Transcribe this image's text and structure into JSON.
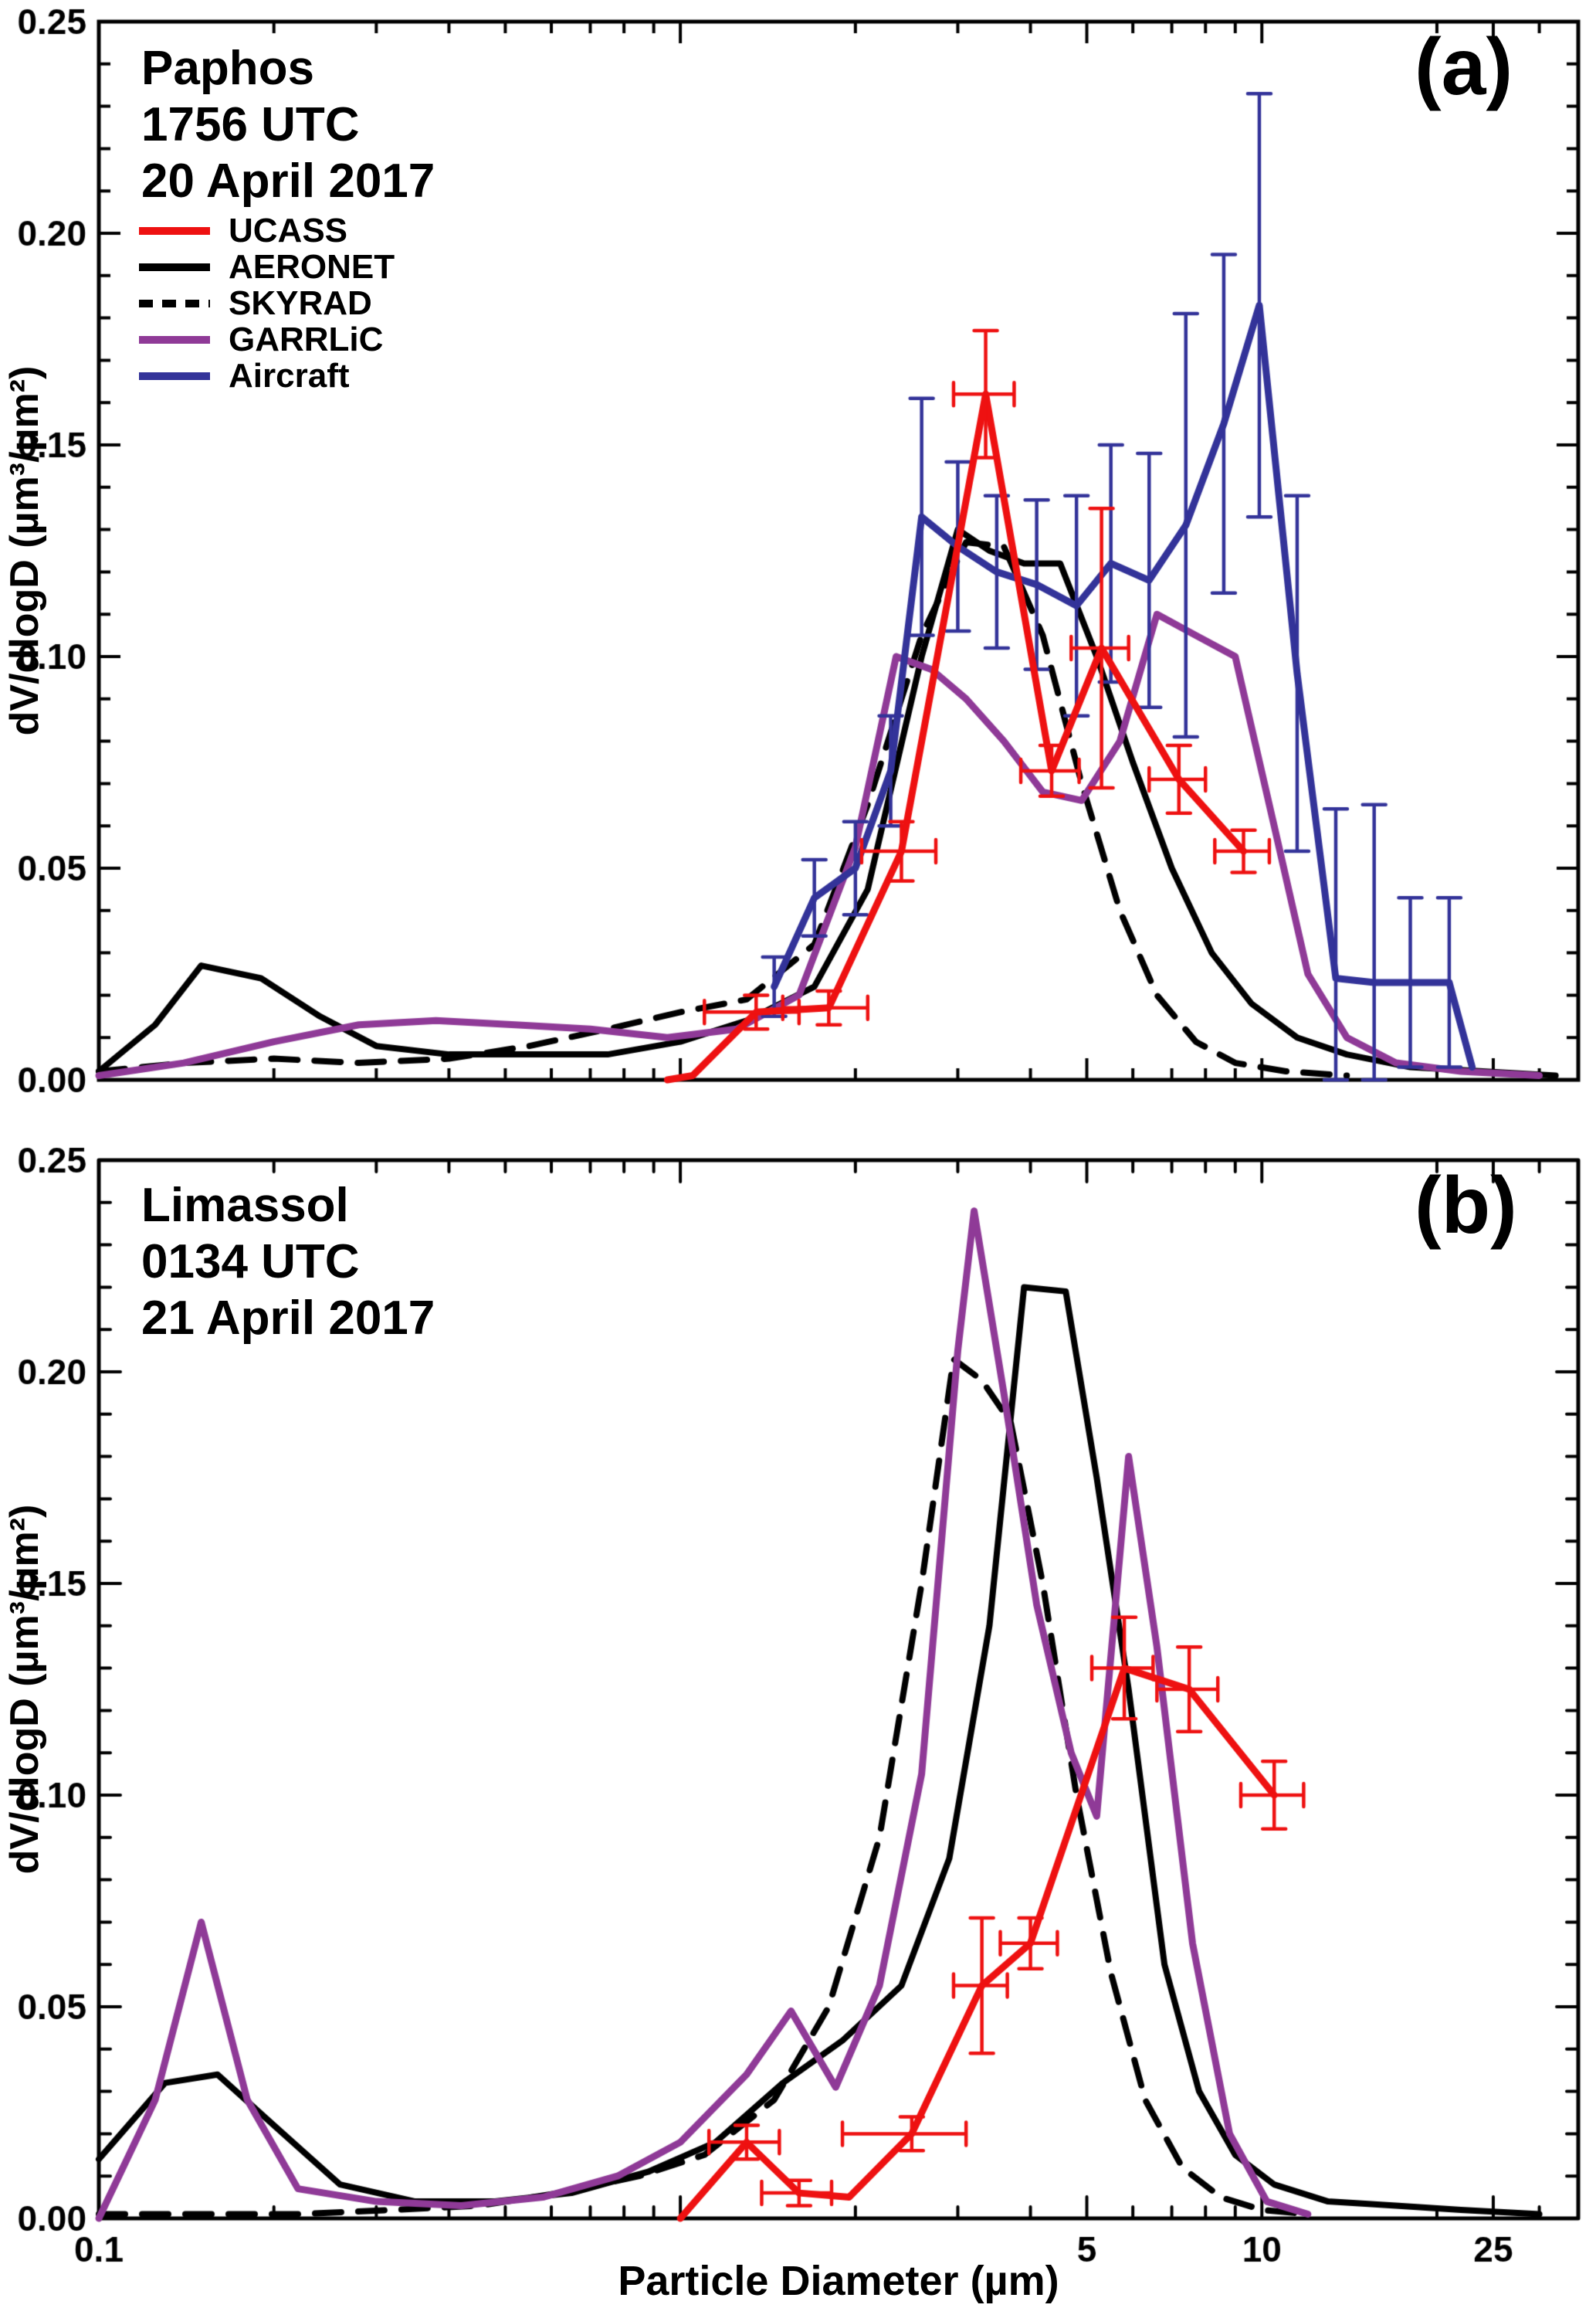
{
  "figure": {
    "xlabel": "Particle Diameter (µm)",
    "ylabel": "dV/dlogD (µm³/µm²)"
  },
  "chart_data": [
    {
      "type": "line",
      "panel_label": "(a)",
      "title_lines": [
        "Paphos",
        "1756 UTC",
        "20 April 2017"
      ],
      "xscale": "log",
      "xlim": [
        0.1,
        35
      ],
      "ylim": [
        0,
        0.25
      ],
      "ytick_step": 0.05,
      "ytick_minor_step": 0.01,
      "xticks_major": [
        0.1,
        1,
        5,
        10,
        25
      ],
      "xticks_minor": [
        0.2,
        0.3,
        0.4,
        0.5,
        0.6,
        0.7,
        0.8,
        0.9,
        2,
        3,
        4,
        6,
        7,
        8,
        9,
        20,
        30
      ],
      "xtick_labels": [],
      "grid": false,
      "legend_position": "upper-left",
      "legend": [
        {
          "name": "UCASS",
          "color": "#ee1111",
          "dash": false
        },
        {
          "name": "AERONET",
          "color": "#000000",
          "dash": false
        },
        {
          "name": "SKYRAD",
          "color": "#000000",
          "dash": true
        },
        {
          "name": "GARRLiC",
          "color": "#8f3a97",
          "dash": false
        },
        {
          "name": "Aircraft",
          "color": "#333399",
          "dash": false
        }
      ],
      "series": [
        {
          "name": "SKYRAD",
          "color": "#000000",
          "dash": true,
          "width": 8,
          "x": [
            0.1,
            0.14,
            0.2,
            0.28,
            0.4,
            0.55,
            0.75,
            1.0,
            1.3,
            1.7,
            2.1,
            2.6,
            3.1,
            3.6,
            4.2,
            4.9,
            5.7,
            6.6,
            7.7,
            9.0,
            11,
            14
          ],
          "y": [
            0.002,
            0.004,
            0.005,
            0.004,
            0.005,
            0.008,
            0.012,
            0.016,
            0.019,
            0.032,
            0.065,
            0.105,
            0.127,
            0.126,
            0.105,
            0.07,
            0.04,
            0.02,
            0.009,
            0.004,
            0.002,
            0.001
          ]
        },
        {
          "name": "AERONET",
          "color": "#000000",
          "dash": false,
          "width": 8,
          "x": [
            0.1,
            0.125,
            0.15,
            0.19,
            0.24,
            0.3,
            0.4,
            0.55,
            0.75,
            1.0,
            1.3,
            1.7,
            2.1,
            2.6,
            3.0,
            3.4,
            3.9,
            4.5,
            5.2,
            6.0,
            7.0,
            8.2,
            9.6,
            11.5,
            14,
            18,
            24,
            32
          ],
          "y": [
            0.002,
            0.013,
            0.027,
            0.024,
            0.015,
            0.008,
            0.006,
            0.006,
            0.006,
            0.009,
            0.014,
            0.022,
            0.045,
            0.1,
            0.13,
            0.125,
            0.122,
            0.122,
            0.1,
            0.075,
            0.05,
            0.03,
            0.018,
            0.01,
            0.006,
            0.003,
            0.002,
            0.001
          ]
        },
        {
          "name": "GARRLiC",
          "color": "#8f3a97",
          "dash": false,
          "width": 9,
          "x": [
            0.1,
            0.14,
            0.2,
            0.28,
            0.38,
            0.52,
            0.7,
            0.95,
            1.25,
            1.6,
            2.0,
            2.35,
            2.7,
            3.1,
            3.6,
            4.2,
            4.9,
            5.7,
            6.6,
            7.7,
            9.0,
            10.5,
            12,
            14,
            17,
            22,
            30
          ],
          "y": [
            0.001,
            0.004,
            0.009,
            0.013,
            0.014,
            0.013,
            0.012,
            0.01,
            0.012,
            0.02,
            0.055,
            0.1,
            0.097,
            0.09,
            0.08,
            0.068,
            0.066,
            0.08,
            0.11,
            0.105,
            0.1,
            0.06,
            0.025,
            0.01,
            0.004,
            0.002,
            0.001
          ]
        },
        {
          "name": "Aircraft",
          "color": "#333399",
          "dash": false,
          "width": 9,
          "x": [
            1.45,
            1.7,
            2.0,
            2.3,
            2.6,
            3.0,
            3.5,
            4.1,
            4.8,
            5.5,
            6.4,
            7.4,
            8.6,
            9.9,
            11.5,
            13.4,
            15.6,
            18,
            21,
            23
          ],
          "y": [
            0.022,
            0.043,
            0.05,
            0.073,
            0.133,
            0.126,
            0.12,
            0.117,
            0.112,
            0.122,
            0.118,
            0.131,
            0.155,
            0.183,
            0.096,
            0.024,
            0.023,
            0.023,
            0.023,
            0.003
          ],
          "yerr": [
            0.007,
            0.009,
            0.011,
            0.013,
            0.028,
            0.02,
            0.018,
            0.02,
            0.026,
            0.028,
            0.03,
            0.05,
            0.04,
            0.05,
            0.042,
            0.04,
            0.042,
            0.02,
            0.02,
            0
          ]
        },
        {
          "name": "UCASS",
          "color": "#ee1111",
          "dash": false,
          "width": 9,
          "x": [
            0.95,
            1.05,
            1.35,
            1.8,
            2.4,
            3.35,
            4.35,
            5.3,
            7.2,
            9.3
          ],
          "y": [
            0.0,
            0.001,
            0.016,
            0.017,
            0.054,
            0.162,
            0.073,
            0.102,
            0.071,
            0.054
          ],
          "xerr": [
            0,
            0,
            0.25,
            0.3,
            0.35,
            0.4,
            0.5,
            0.6,
            0.8,
            1.0
          ],
          "yerr": [
            0,
            0,
            0.004,
            0.004,
            0.007,
            0.015,
            0.006,
            0.033,
            0.008,
            0.005
          ]
        }
      ]
    },
    {
      "type": "line",
      "panel_label": "(b)",
      "title_lines": [
        "Limassol",
        "0134 UTC",
        "21 April 2017"
      ],
      "xscale": "log",
      "xlim": [
        0.1,
        35
      ],
      "ylim": [
        0,
        0.25
      ],
      "ytick_step": 0.05,
      "ytick_minor_step": 0.01,
      "xticks_major": [
        0.1,
        1,
        5,
        10,
        25
      ],
      "xticks_minor": [
        0.2,
        0.3,
        0.4,
        0.5,
        0.6,
        0.7,
        0.8,
        0.9,
        2,
        3,
        4,
        6,
        7,
        8,
        9,
        20,
        30
      ],
      "xtick_labels": [
        {
          "v": 0.1,
          "label": "0.1"
        },
        {
          "v": 5,
          "label": "5"
        },
        {
          "v": 10,
          "label": "10"
        },
        {
          "v": 25,
          "label": "25"
        }
      ],
      "grid": false,
      "legend": [],
      "series": [
        {
          "name": "SKYRAD",
          "color": "#000000",
          "dash": true,
          "width": 8,
          "x": [
            0.1,
            0.15,
            0.22,
            0.32,
            0.45,
            0.62,
            0.85,
            1.1,
            1.45,
            1.8,
            2.2,
            2.6,
            2.95,
            3.3,
            3.7,
            4.2,
            4.8,
            5.5,
            6.3,
            7.3,
            8.5,
            10,
            12
          ],
          "y": [
            0.001,
            0.001,
            0.001,
            0.002,
            0.003,
            0.006,
            0.01,
            0.015,
            0.028,
            0.05,
            0.09,
            0.15,
            0.203,
            0.198,
            0.188,
            0.15,
            0.1,
            0.058,
            0.028,
            0.012,
            0.005,
            0.002,
            0.001
          ]
        },
        {
          "name": "AERONET",
          "color": "#000000",
          "dash": false,
          "width": 8,
          "x": [
            0.1,
            0.13,
            0.16,
            0.2,
            0.26,
            0.35,
            0.48,
            0.65,
            0.88,
            1.15,
            1.5,
            1.9,
            2.4,
            2.9,
            3.4,
            3.9,
            4.6,
            5.2,
            5.9,
            6.8,
            7.8,
            9.0,
            10.5,
            13,
            17,
            22,
            30
          ],
          "y": [
            0.014,
            0.032,
            0.034,
            0.022,
            0.008,
            0.004,
            0.004,
            0.006,
            0.011,
            0.018,
            0.032,
            0.042,
            0.055,
            0.085,
            0.14,
            0.22,
            0.219,
            0.175,
            0.125,
            0.06,
            0.03,
            0.015,
            0.008,
            0.004,
            0.003,
            0.002,
            0.001
          ]
        },
        {
          "name": "GARRLiC",
          "color": "#8f3a97",
          "dash": false,
          "width": 9,
          "x": [
            0.1,
            0.125,
            0.15,
            0.18,
            0.22,
            0.3,
            0.42,
            0.58,
            0.78,
            1.0,
            1.3,
            1.55,
            1.85,
            2.2,
            2.6,
            3.0,
            3.2,
            3.6,
            4.1,
            4.7,
            5.2,
            5.9,
            6.6,
            7.6,
            8.8,
            10.2,
            12
          ],
          "y": [
            0.0,
            0.028,
            0.07,
            0.028,
            0.007,
            0.004,
            0.003,
            0.005,
            0.01,
            0.018,
            0.034,
            0.049,
            0.031,
            0.055,
            0.105,
            0.205,
            0.238,
            0.195,
            0.145,
            0.11,
            0.095,
            0.18,
            0.135,
            0.065,
            0.02,
            0.004,
            0.001
          ]
        },
        {
          "name": "UCASS",
          "color": "#ee1111",
          "dash": false,
          "width": 9,
          "x": [
            1.0,
            1.3,
            1.6,
            1.95,
            2.5,
            3.3,
            4.0,
            5.8,
            7.5,
            10.5
          ],
          "y": [
            0.0,
            0.018,
            0.006,
            0.005,
            0.02,
            0.055,
            0.065,
            0.13,
            0.125,
            0.1
          ],
          "xerr": [
            0,
            0.18,
            0.22,
            0,
            0.6,
            0.35,
            0.45,
            0.7,
            0.9,
            1.3
          ],
          "yerr": [
            0,
            0.004,
            0.003,
            0,
            0.004,
            0.016,
            0.006,
            0.012,
            0.01,
            0.008
          ]
        }
      ]
    }
  ]
}
